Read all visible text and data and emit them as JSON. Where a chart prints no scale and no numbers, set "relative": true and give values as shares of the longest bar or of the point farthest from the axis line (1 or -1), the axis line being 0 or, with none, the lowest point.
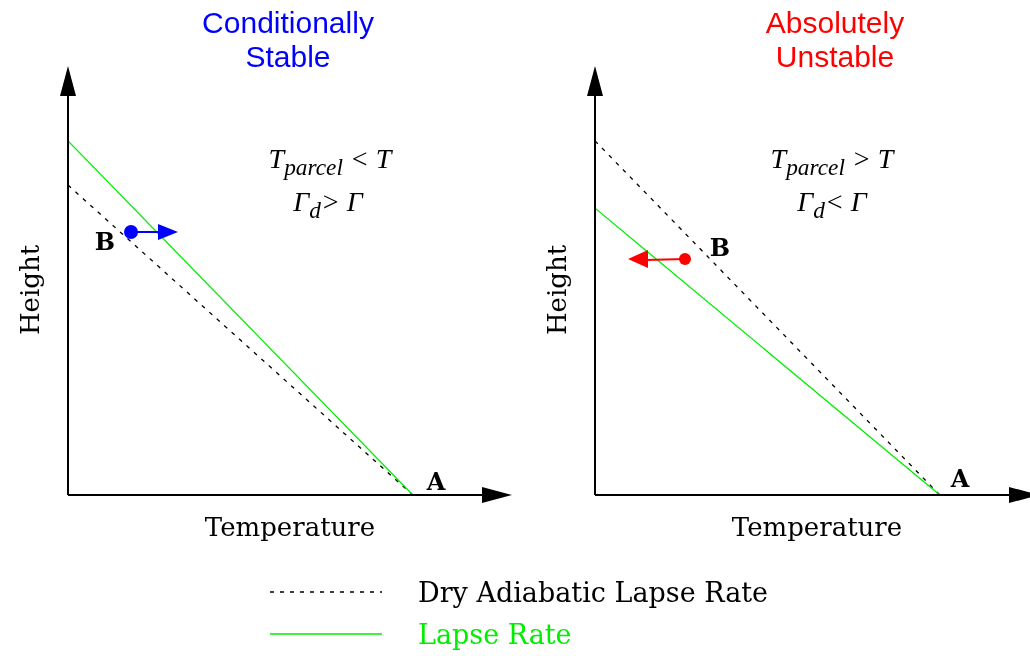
{
  "chart_data": [
    {
      "type": "line",
      "title": "Conditionally Stable",
      "xlabel": "Temperature",
      "ylabel": "Height",
      "relative": true,
      "categories": [
        null,
        null
      ],
      "series": [
        {
          "name": "Dry Adiabatic Lapse Rate",
          "color": "#000000",
          "line_style": "dotted",
          "values": [
            0.875,
            0
          ]
        },
        {
          "name": "Lapse Rate",
          "color": "#00ee00",
          "line_style": "solid",
          "values": [
            1,
            0
          ]
        }
      ],
      "annotations": [
        "T$_{parcel}$ < T",
        "Γ$_{d}$> Γ",
        "B",
        "A"
      ],
      "marker": "none",
      "grid": false,
      "legend": "bottom"
    },
    {
      "type": "line",
      "title": "Absolutely Unstable",
      "xlabel": "Temperature",
      "ylabel": "Height",
      "relative": true,
      "categories": [
        null,
        null
      ],
      "series": [
        {
          "name": "Dry Adiabatic Lapse Rate",
          "color": "#000000",
          "line_style": "dotted",
          "values": [
            1,
            0
          ]
        },
        {
          "name": "Lapse Rate",
          "color": "#00ee00",
          "line_style": "solid",
          "values": [
            0.81,
            0
          ]
        }
      ],
      "annotations": [
        "T$_{parcel}$ > T",
        "Γ$_{d}$< Γ",
        "B",
        "A"
      ],
      "marker": "none",
      "grid": false,
      "legend": "bottom"
    }
  ]
}
